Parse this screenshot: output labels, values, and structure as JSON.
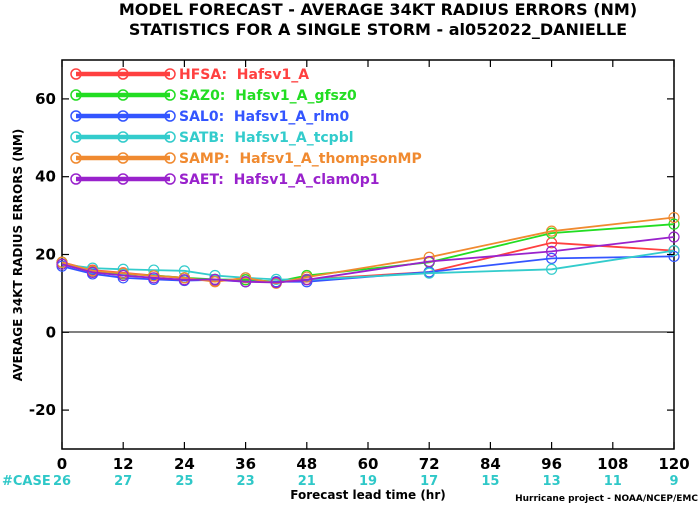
{
  "chart_data": {
    "type": "line",
    "title": "MODEL FORECAST - AVERAGE 34KT RADIUS ERRORS (NM)",
    "subtitle": "STATISTICS FOR A SINGLE STORM - al052022_DANIELLE",
    "xlabel": "Forecast lead time (hr)",
    "ylabel": "AVERAGE 34KT RADIUS ERRORS (NM)",
    "xlim": [
      0,
      120
    ],
    "ylim": [
      -30,
      70
    ],
    "xticks": [
      0,
      12,
      24,
      36,
      48,
      60,
      72,
      84,
      96,
      108,
      120
    ],
    "yticks": [
      -20,
      0,
      20,
      40,
      60
    ],
    "grid": false,
    "legend_position": "top-left",
    "case_label": "#CASE",
    "case_counts": [
      "26",
      "27",
      "25",
      "23",
      "21",
      "19",
      "17",
      "15",
      "13",
      "11",
      "9"
    ],
    "credit": "Hurricane project - NOAA/NCEP/EMC",
    "x": [
      0,
      6,
      12,
      18,
      24,
      30,
      36,
      42,
      48,
      72,
      96,
      120
    ],
    "series": [
      {
        "name": "HFSA:  Hafsv1_A",
        "color": "#ff4040",
        "values": [
          18.0,
          16.0,
          15.3,
          14.6,
          14.0,
          13.2,
          13.5,
          12.8,
          13.6,
          15.5,
          23.0,
          21.0
        ]
      },
      {
        "name": "SAZ0:  Hafsv1_A_gfsz0",
        "color": "#22dd22",
        "values": [
          18.0,
          15.5,
          15.0,
          14.6,
          14.0,
          13.6,
          13.5,
          13.0,
          14.6,
          18.0,
          25.5,
          27.8
        ]
      },
      {
        "name": "SAL0:  Hafsv1_A_rlm0",
        "color": "#3355ff",
        "values": [
          17.0,
          15.0,
          14.0,
          13.6,
          13.3,
          13.5,
          13.0,
          13.0,
          13.0,
          15.5,
          19.0,
          19.5
        ]
      },
      {
        "name": "SATB:  Hafsv1_A_tcpbl",
        "color": "#33cccc",
        "values": [
          17.5,
          16.5,
          16.2,
          16.0,
          15.8,
          14.6,
          14.0,
          13.6,
          13.5,
          15.2,
          16.2,
          21.0
        ]
      },
      {
        "name": "SAMP:  Hafsv1_A_thompsonMP",
        "color": "#f08a30",
        "values": [
          18.0,
          15.8,
          15.2,
          14.5,
          14.0,
          13.0,
          14.0,
          12.6,
          14.2,
          19.3,
          26.0,
          29.5
        ]
      },
      {
        "name": "SAET:  Hafsv1_A_clam0p1",
        "color": "#9922cc",
        "values": [
          17.5,
          15.4,
          14.6,
          14.0,
          13.5,
          13.6,
          13.0,
          12.8,
          13.5,
          18.2,
          20.8,
          24.5
        ]
      }
    ]
  }
}
